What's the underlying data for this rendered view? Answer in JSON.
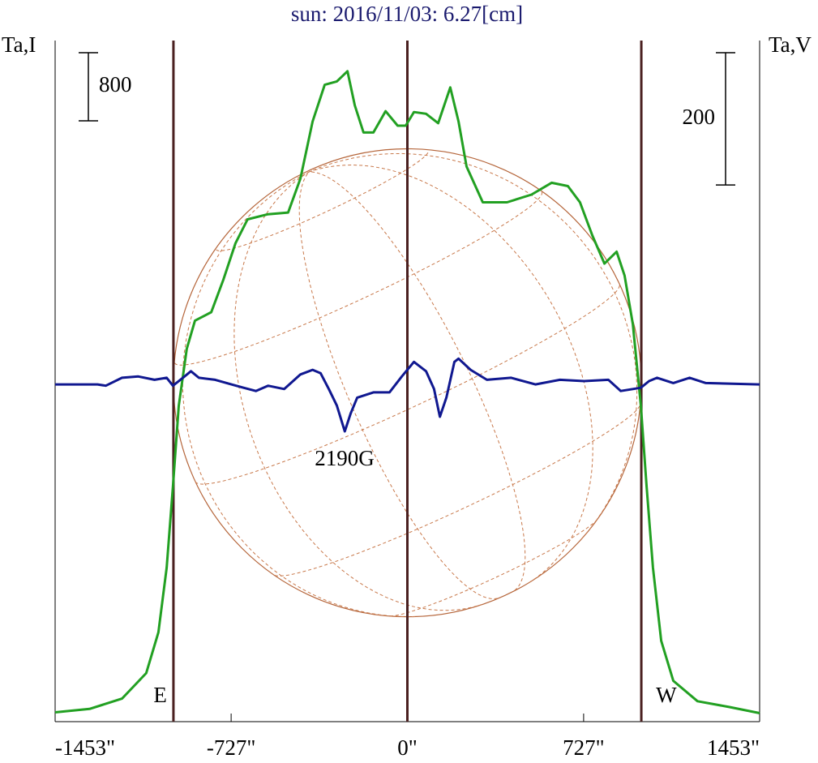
{
  "chart_data": {
    "type": "line",
    "title": "sun: 2016/11/03: 6.27[cm]",
    "ylabel": "Ta,I",
    "y2label": "Ta,V",
    "xlim": [
      -1453,
      1453
    ],
    "xticks": [
      {
        "value": -1453,
        "label": "-1453\""
      },
      {
        "value": -727,
        "label": "-727\""
      },
      {
        "value": 0,
        "label": "0\""
      },
      {
        "value": 727,
        "label": "727\""
      },
      {
        "value": 1453,
        "label": "1453\""
      }
    ],
    "ylim": [
      0,
      8000
    ],
    "y2lim": [
      -510,
      520
    ],
    "scale_bars": [
      {
        "label": "800",
        "value": 800,
        "axis": "y"
      },
      {
        "label": "200",
        "value": 200,
        "axis": "y2"
      }
    ],
    "limb_lines": [
      -965,
      0,
      965
    ],
    "limb_labels": [
      "E",
      "W"
    ],
    "annotation": "2190G",
    "series": [
      {
        "color": "#22a022",
        "x": [
          -1453,
          -1311,
          -1177,
          -1077,
          -1027,
          -993,
          -967,
          -943,
          -910,
          -876,
          -809,
          -759,
          -709,
          -659,
          -575,
          -492,
          -441,
          -391,
          -341,
          -291,
          -247,
          -217,
          -181,
          -140,
          -90,
          -40,
          -7,
          27,
          77,
          127,
          177,
          211,
          244,
          311,
          411,
          512,
          595,
          662,
          712,
          763,
          813,
          863,
          896,
          930,
          963,
          987,
          1013,
          1047,
          1097,
          1197,
          1331,
          1453
        ],
        "values": [
          110,
          150,
          270,
          570,
          1050,
          1810,
          2760,
          3710,
          4380,
          4710,
          4810,
          5190,
          5620,
          5900,
          5960,
          5980,
          6380,
          7050,
          7480,
          7520,
          7640,
          7240,
          6920,
          6920,
          7170,
          7000,
          7000,
          7160,
          7140,
          7030,
          7450,
          7050,
          6520,
          6100,
          6100,
          6190,
          6330,
          6290,
          6100,
          5710,
          5380,
          5520,
          5240,
          4670,
          3710,
          2760,
          1810,
          950,
          480,
          240,
          170,
          100
        ]
      },
      {
        "color": "#101890",
        "axis": "y2",
        "x": [
          -1453,
          -1278,
          -1244,
          -1177,
          -1110,
          -1043,
          -993,
          -967,
          -926,
          -893,
          -860,
          -793,
          -726,
          -676,
          -625,
          -575,
          -508,
          -441,
          -391,
          -358,
          -324,
          -291,
          -258,
          -234,
          -207,
          -140,
          -74,
          -23,
          27,
          77,
          110,
          134,
          161,
          194,
          211,
          261,
          328,
          428,
          528,
          629,
          729,
          829,
          880,
          930,
          963,
          997,
          1030,
          1097,
          1164,
          1231,
          1453
        ],
        "values": [
          0,
          0,
          -2,
          10,
          12,
          7,
          10,
          -2,
          10,
          20,
          10,
          7,
          0,
          -5,
          -10,
          -2,
          -7,
          15,
          22,
          17,
          -7,
          -32,
          -71,
          -44,
          -20,
          -12,
          -12,
          12,
          34,
          20,
          -7,
          -49,
          -20,
          34,
          39,
          22,
          7,
          10,
          0,
          7,
          5,
          7,
          -10,
          -7,
          -5,
          5,
          10,
          2,
          10,
          2,
          0
        ]
      }
    ]
  }
}
